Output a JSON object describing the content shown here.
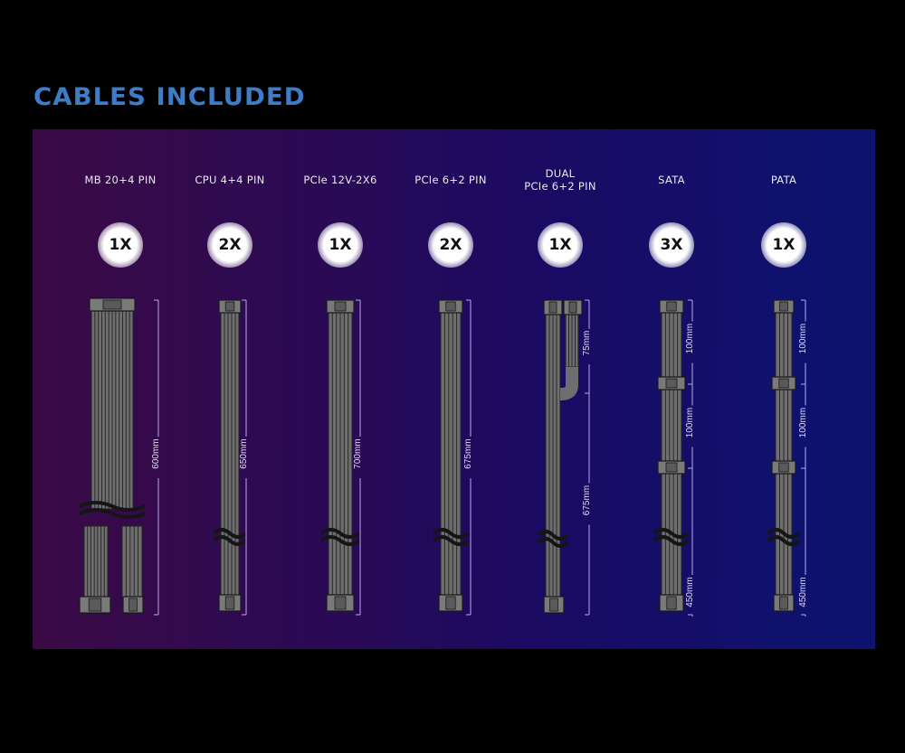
{
  "title": "CABLES INCLUDED",
  "colors": {
    "title": "#3d7cc6",
    "cable": "#6e6e6e",
    "dimension": "#b9a8e8"
  },
  "cables": [
    {
      "label": "MB 20+4 PIN",
      "qty": "1X",
      "type": "mb",
      "segments": [
        "600mm"
      ]
    },
    {
      "label": "CPU 4+4 PIN",
      "qty": "2X",
      "type": "cpu",
      "segments": [
        "650mm"
      ]
    },
    {
      "label": "PCIe 12V-2X6",
      "qty": "1X",
      "type": "12v",
      "segments": [
        "700mm"
      ]
    },
    {
      "label": "PCIe 6+2 PIN",
      "qty": "2X",
      "type": "pcie",
      "segments": [
        "675mm"
      ]
    },
    {
      "label": "DUAL\nPCIe 6+2 PIN",
      "qty": "1X",
      "type": "dual",
      "segments": [
        "75mm",
        "675mm"
      ]
    },
    {
      "label": "SATA",
      "qty": "3X",
      "type": "sata",
      "segments": [
        "100mm",
        "100mm",
        "450mm"
      ]
    },
    {
      "label": "PATA",
      "qty": "1X",
      "type": "pata",
      "segments": [
        "100mm",
        "100mm",
        "450mm"
      ]
    }
  ]
}
